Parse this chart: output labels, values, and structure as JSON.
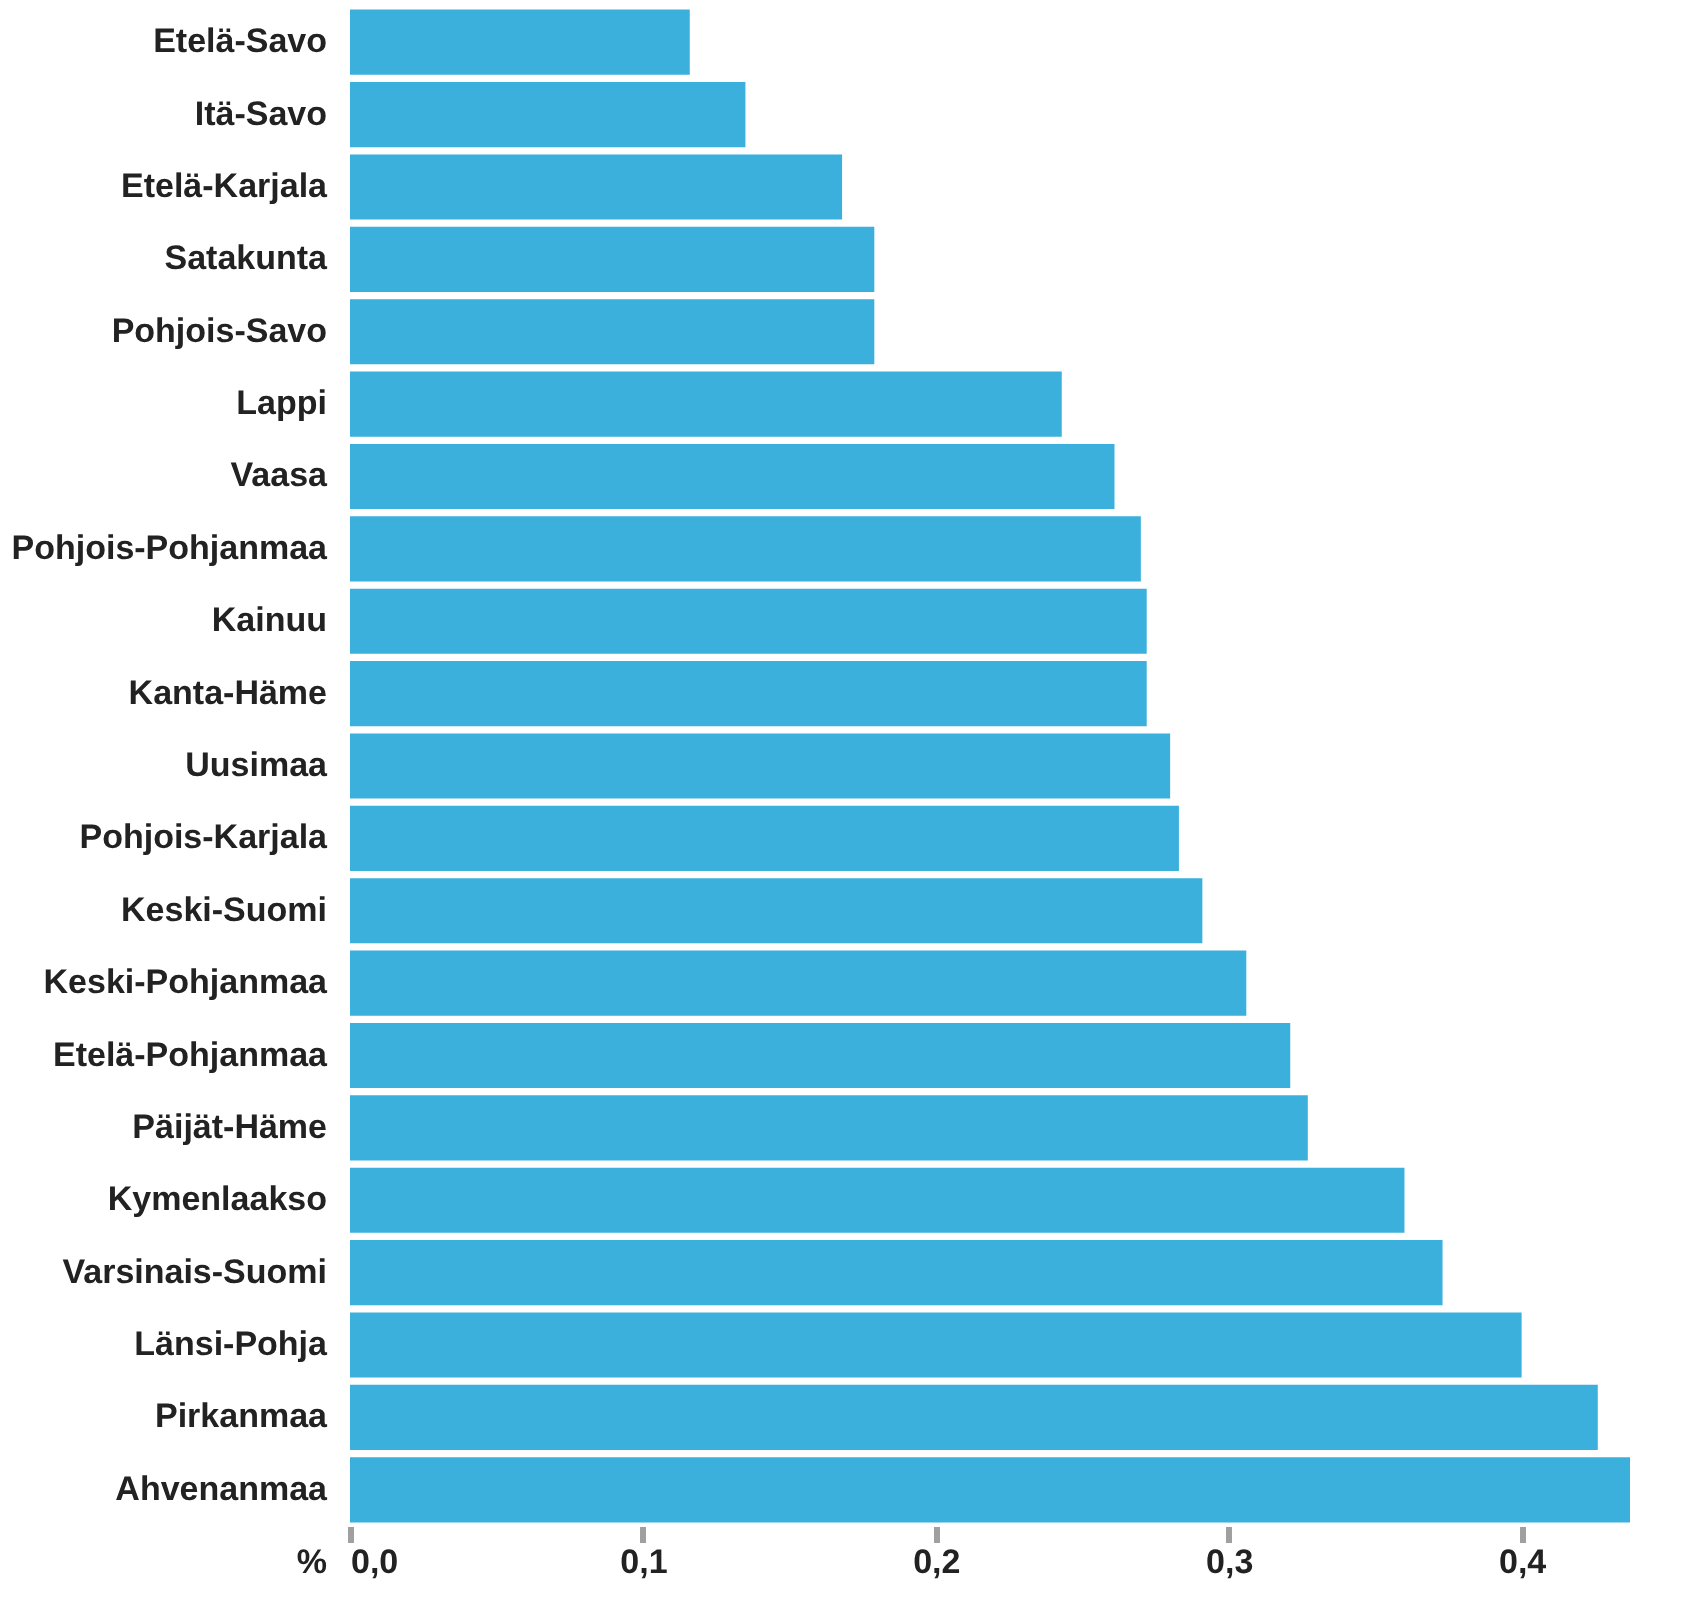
{
  "chart_data": {
    "type": "bar",
    "orientation": "horizontal",
    "xlabel": "%",
    "categories": [
      "Etelä-Savo",
      "Itä-Savo",
      "Etelä-Karjala",
      "Satakunta",
      "Pohjois-Savo",
      "Lappi",
      "Vaasa",
      "Pohjois-Pohjanmaa",
      "Kainuu",
      "Kanta-Häme",
      "Uusimaa",
      "Pohjois-Karjala",
      "Keski-Suomi",
      "Keski-Pohjanmaa",
      "Etelä-Pohjanmaa",
      "Päijät-Häme",
      "Kymenlaakso",
      "Varsinais-Suomi",
      "Länsi-Pohja",
      "Pirkanmaa",
      "Ahvenanmaa"
    ],
    "values": [
      0.116,
      0.135,
      0.168,
      0.179,
      0.179,
      0.243,
      0.261,
      0.27,
      0.272,
      0.272,
      0.28,
      0.283,
      0.291,
      0.306,
      0.321,
      0.327,
      0.36,
      0.373,
      0.4,
      0.426,
      0.437
    ],
    "color": "#3bb0dc",
    "xlim": [
      0,
      0.437
    ],
    "xticks": [
      {
        "value": 0,
        "label": "0,0"
      },
      {
        "value": 0.1,
        "label": "0,1"
      },
      {
        "value": 0.2,
        "label": "0,2"
      },
      {
        "value": 0.3,
        "label": "0,3"
      },
      {
        "value": 0.4,
        "label": "0,4"
      }
    ],
    "grid": false
  }
}
